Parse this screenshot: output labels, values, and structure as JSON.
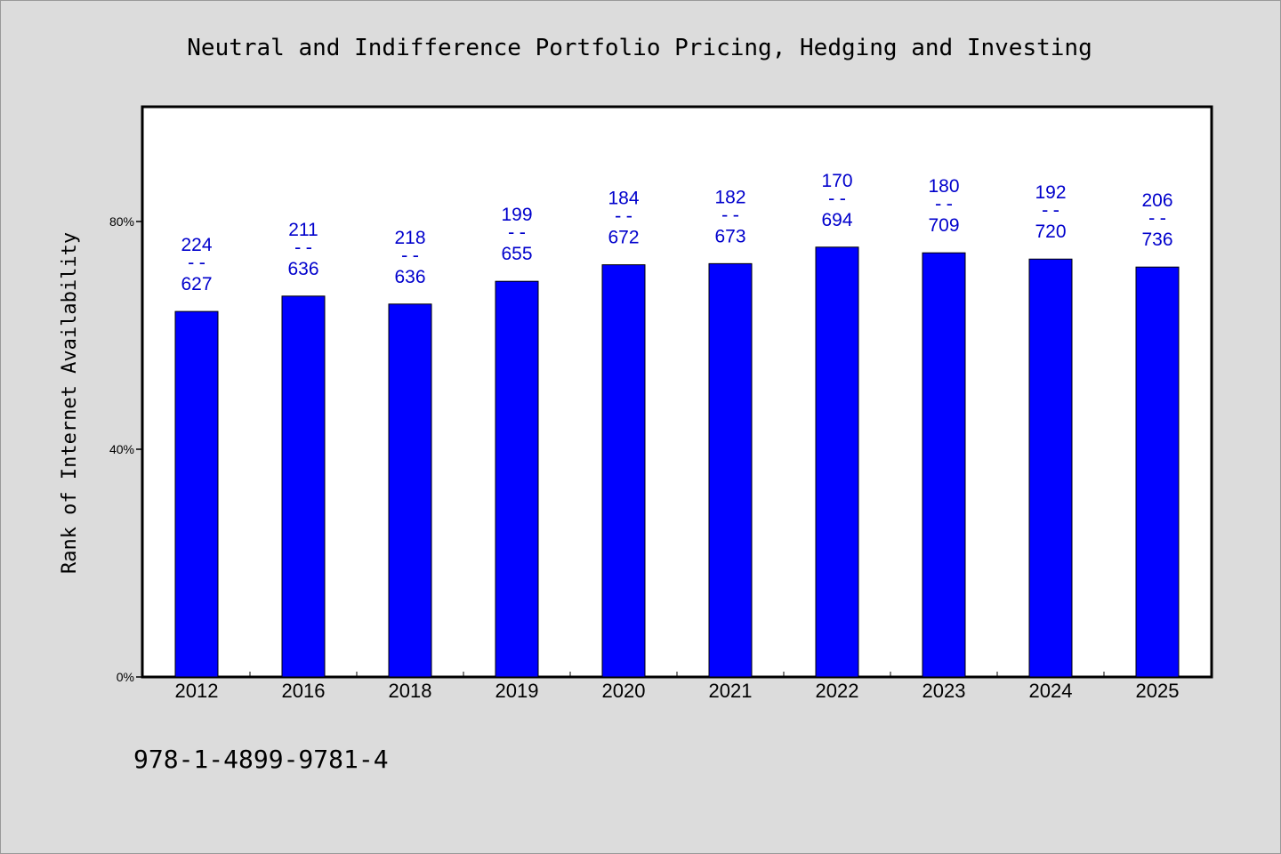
{
  "chart_data": {
    "type": "bar",
    "title": "Neutral and Indifference Portfolio Pricing, Hedging and Investing",
    "ylabel": "Rank of Internet Availability",
    "xlabel": "",
    "categories": [
      "2012",
      "2016",
      "2018",
      "2019",
      "2020",
      "2021",
      "2022",
      "2023",
      "2024",
      "2025"
    ],
    "values": [
      64.2,
      66.9,
      65.5,
      69.5,
      72.4,
      72.6,
      75.5,
      74.5,
      73.4,
      72.0
    ],
    "numerators": [
      "224",
      "211",
      "218",
      "199",
      "184",
      "182",
      "170",
      "180",
      "192",
      "206"
    ],
    "denominators": [
      "627",
      "636",
      "636",
      "655",
      "672",
      "673",
      "694",
      "709",
      "720",
      "736"
    ],
    "fraction_separator": "--",
    "ylim": [
      0,
      100
    ],
    "yticks": [
      0,
      40,
      80
    ],
    "ytick_labels": [
      "0%",
      "40%",
      "80%"
    ],
    "grid": false,
    "legend": "none",
    "bar_color": "#0000ff",
    "label_color": "#0000cc",
    "background_color": "#dcdcdc",
    "plot_background_color": "#ffffff"
  },
  "footer": {
    "isbn": "978-1-4899-9781-4"
  }
}
